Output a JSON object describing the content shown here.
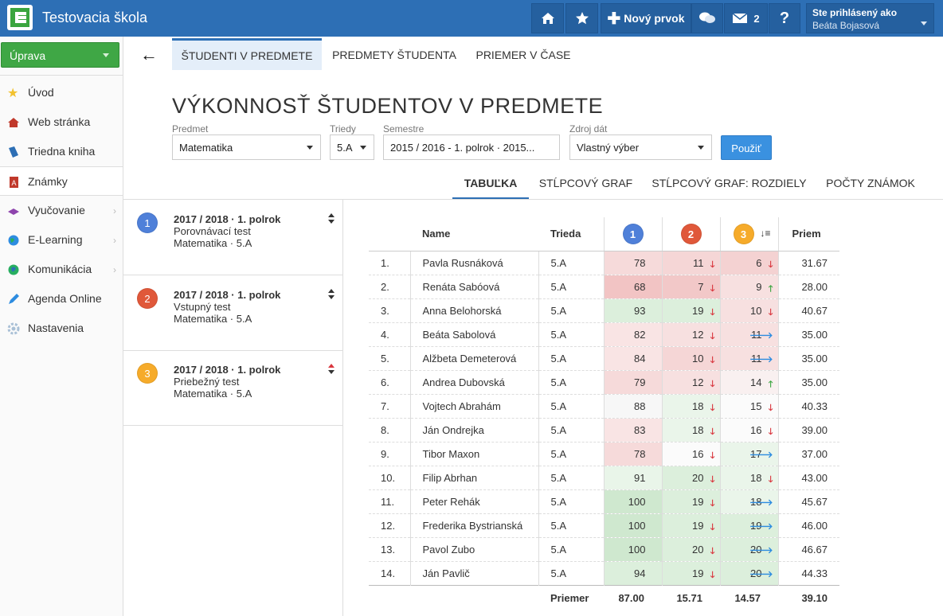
{
  "app": {
    "title": "Testovacia škola"
  },
  "topbar": {
    "new_item_label": "Nový prvok",
    "messages_count": "2",
    "help_label": "?",
    "user_caption": "Ste prihlásený ako",
    "user_name": "Beáta Bojasová"
  },
  "sidebar": {
    "edit_label": "Úprava",
    "items": [
      {
        "label": "Úvod",
        "icon": "star-icon",
        "color": "#f2c12e"
      },
      {
        "label": "Web stránka",
        "icon": "house-icon",
        "color": "#c0392b"
      },
      {
        "label": "Triedna kniha",
        "icon": "book-icon",
        "color": "#2d6fb5"
      },
      {
        "label": "Známky",
        "icon": "grades-icon",
        "color": "#c0392b"
      },
      {
        "label": "Vyučovanie",
        "icon": "teaching-icon",
        "color": "#8e44ad"
      },
      {
        "label": "E-Learning",
        "icon": "globe-icon",
        "color": "#27ae60"
      },
      {
        "label": "Komunikácia",
        "icon": "communication-icon",
        "color": "#16a085"
      },
      {
        "label": "Agenda Online",
        "icon": "pen-icon",
        "color": "#2d8ce0"
      },
      {
        "label": "Nastavenia",
        "icon": "settings-icon",
        "color": "#9ab"
      }
    ]
  },
  "tabs": [
    "ŠTUDENTI V PREDMETE",
    "PREDMETY ŠTUDENTA",
    "PRIEMER V ČASE"
  ],
  "page_title": "VÝKONNOSŤ ŠTUDENTOV V PREDMETE",
  "filters": {
    "subject_label": "Predmet",
    "subject_value": "Matematika",
    "class_label": "Triedy",
    "class_value": "5.A",
    "semester_label": "Semestre",
    "semester_value": "2015 / 2016 - 1. polrok · 2015...",
    "source_label": "Zdroj dát",
    "source_value": "Vlastný výber",
    "apply_label": "Použiť"
  },
  "view_tabs": [
    "TABUĽKA",
    "STĹPCOVÝ GRAF",
    "STĹPCOVÝ GRAF: ROZDIELY",
    "POČTY ZNÁMOK"
  ],
  "tests": [
    {
      "num": "1",
      "period": "2017 / 2018 · 1. polrok",
      "name": "Porovnávací test",
      "subject": "Matematika · 5.A"
    },
    {
      "num": "2",
      "period": "2017 / 2018 · 1. polrok",
      "name": "Vstupný test",
      "subject": "Matematika · 5.A"
    },
    {
      "num": "3",
      "period": "2017 / 2018 · 1. polrok",
      "name": "Priebežný test",
      "subject": "Matematika · 5.A"
    }
  ],
  "table": {
    "headers": {
      "name": "Name",
      "class": "Trieda",
      "t1": "1",
      "t2": "2",
      "t3": "3",
      "avg": "Priem"
    },
    "rows": [
      {
        "n": "1.",
        "name": "Pavla Rusnáková",
        "cls": "5.A",
        "s1": "78",
        "s2": "11",
        "a2": "down",
        "s3": "6",
        "a3": "down",
        "avg": "31.67"
      },
      {
        "n": "2.",
        "name": "Renáta Sabóová",
        "cls": "5.A",
        "s1": "68",
        "s2": "7",
        "a2": "down",
        "s3": "9",
        "a3": "up",
        "avg": "28.00"
      },
      {
        "n": "3.",
        "name": "Anna Belohorská",
        "cls": "5.A",
        "s1": "93",
        "s2": "19",
        "a2": "down",
        "s3": "10",
        "a3": "down",
        "avg": "40.67"
      },
      {
        "n": "4.",
        "name": "Beáta Sabolová",
        "cls": "5.A",
        "s1": "82",
        "s2": "12",
        "a2": "down",
        "s3": "11",
        "a3": "right",
        "avg": "35.00"
      },
      {
        "n": "5.",
        "name": "Alžbeta Demeterová",
        "cls": "5.A",
        "s1": "84",
        "s2": "10",
        "a2": "down",
        "s3": "11",
        "a3": "right",
        "avg": "35.00"
      },
      {
        "n": "6.",
        "name": "Andrea Dubovská",
        "cls": "5.A",
        "s1": "79",
        "s2": "12",
        "a2": "down",
        "s3": "14",
        "a3": "up",
        "avg": "35.00"
      },
      {
        "n": "7.",
        "name": "Vojtech Abrahám",
        "cls": "5.A",
        "s1": "88",
        "s2": "18",
        "a2": "down",
        "s3": "15",
        "a3": "down",
        "avg": "40.33"
      },
      {
        "n": "8.",
        "name": "Ján Ondrejka",
        "cls": "5.A",
        "s1": "83",
        "s2": "18",
        "a2": "down",
        "s3": "16",
        "a3": "down",
        "avg": "39.00"
      },
      {
        "n": "9.",
        "name": "Tibor Maxon",
        "cls": "5.A",
        "s1": "78",
        "s2": "16",
        "a2": "down",
        "s3": "17",
        "a3": "right",
        "avg": "37.00"
      },
      {
        "n": "10.",
        "name": "Filip Abrhan",
        "cls": "5.A",
        "s1": "91",
        "s2": "20",
        "a2": "down",
        "s3": "18",
        "a3": "down",
        "avg": "43.00"
      },
      {
        "n": "11.",
        "name": "Peter Rehák",
        "cls": "5.A",
        "s1": "100",
        "s2": "19",
        "a2": "down",
        "s3": "18",
        "a3": "right",
        "avg": "45.67"
      },
      {
        "n": "12.",
        "name": "Frederika Bystrianská",
        "cls": "5.A",
        "s1": "100",
        "s2": "19",
        "a2": "down",
        "s3": "19",
        "a3": "right",
        "avg": "46.00"
      },
      {
        "n": "13.",
        "name": "Pavol Zubo",
        "cls": "5.A",
        "s1": "100",
        "s2": "20",
        "a2": "down",
        "s3": "20",
        "a3": "right",
        "avg": "46.67"
      },
      {
        "n": "14.",
        "name": "Ján Pavlič",
        "cls": "5.A",
        "s1": "94",
        "s2": "19",
        "a2": "down",
        "s3": "20",
        "a3": "right",
        "avg": "44.33"
      }
    ],
    "footer": {
      "label": "Priemer",
      "t1": "87.00",
      "t2": "15.71",
      "t3": "14.57",
      "avg": "39.10"
    }
  }
}
